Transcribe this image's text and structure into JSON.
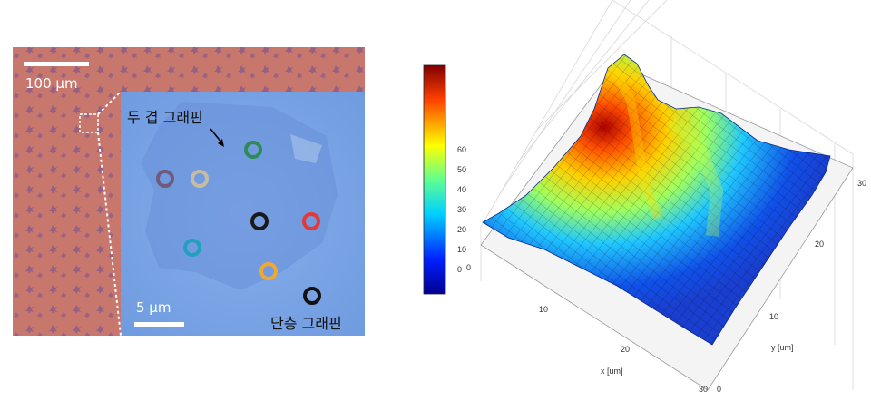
{
  "micrograph": {
    "scale_large": "100 μm",
    "scale_small": "5 μm",
    "label_double": "두 겹 그래핀",
    "label_single": "단층 그래핀",
    "colors": {
      "substrate": "#c8776d",
      "inset": "#7ea7e6",
      "flake_double": "#6e8fd6",
      "flake_single": "#7a9ee6"
    },
    "markers": [
      {
        "id": "green",
        "color": "#2e8b57"
      },
      {
        "id": "purple",
        "color": "#6f5b7a"
      },
      {
        "id": "beige",
        "color": "#c8bca0"
      },
      {
        "id": "black-center",
        "color": "#1a1a1a"
      },
      {
        "id": "red",
        "color": "#e53935"
      },
      {
        "id": "cyan",
        "color": "#22a0c0"
      },
      {
        "id": "orange",
        "color": "#f0a830"
      },
      {
        "id": "black-legend",
        "color": "#111111"
      }
    ]
  },
  "chart_data": {
    "type": "surface",
    "colorbar": {
      "ticks": [
        "0",
        "10",
        "20",
        "30",
        "40",
        "50",
        "60"
      ],
      "range": [
        0,
        60
      ]
    },
    "x_axis": {
      "label": "x [um]",
      "ticks": [
        "0",
        "10",
        "20",
        "30"
      ]
    },
    "y_axis": {
      "label": "y [um]",
      "ticks": [
        "0",
        "10",
        "20",
        "30"
      ]
    },
    "colormap": "jet"
  }
}
